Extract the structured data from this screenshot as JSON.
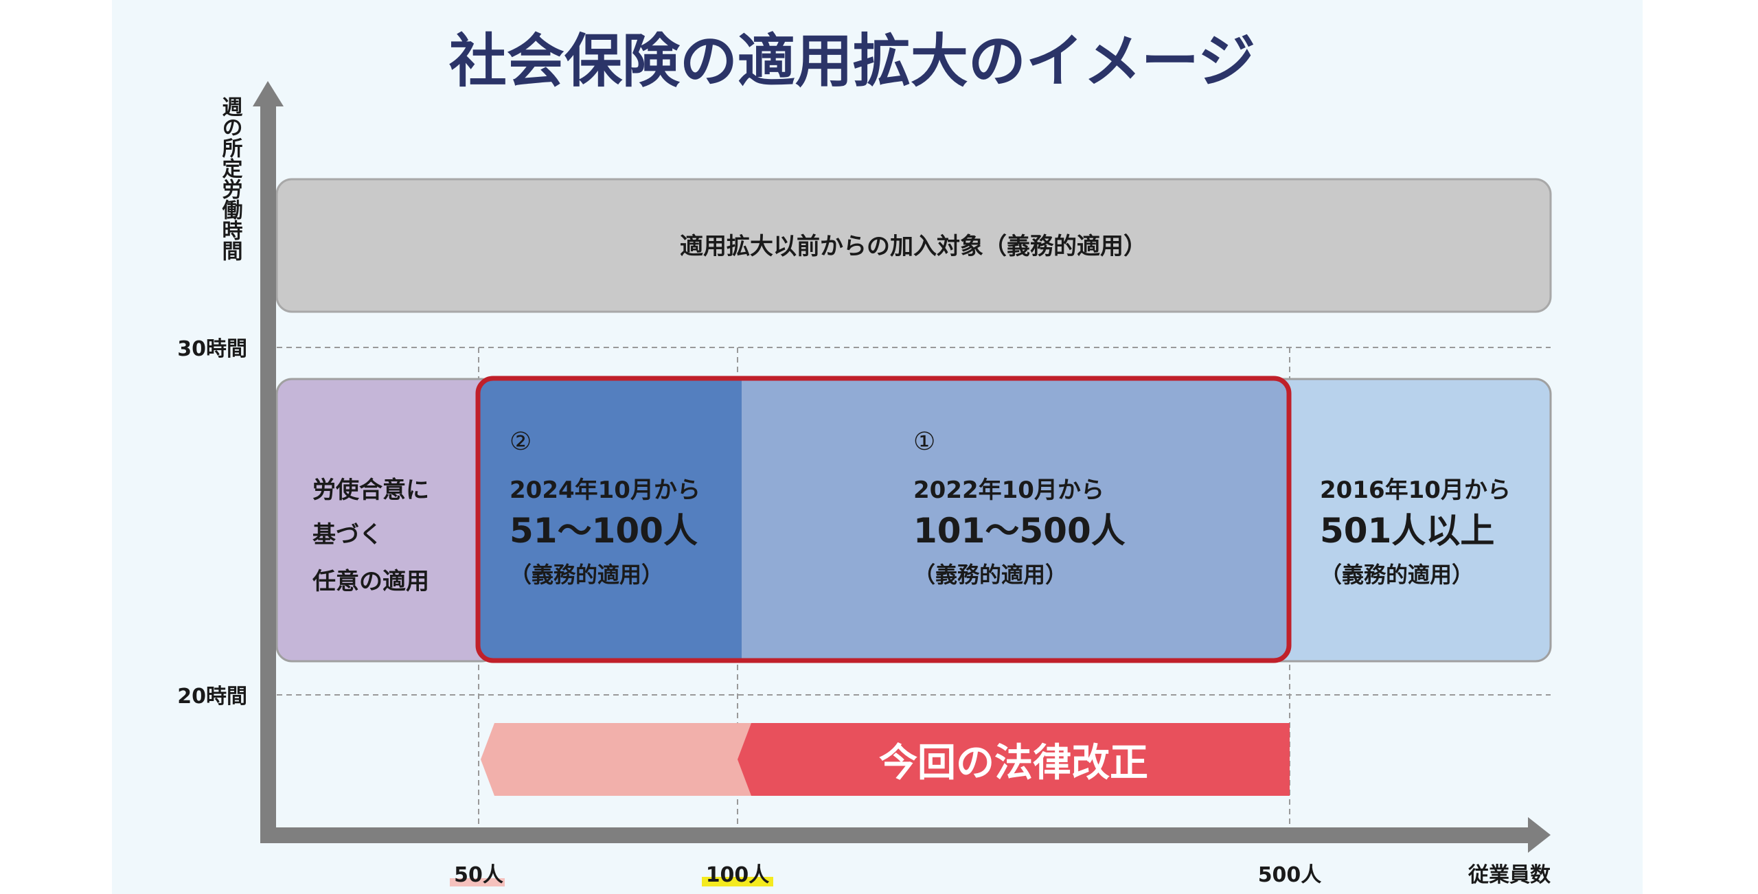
{
  "title": "社会保険の適用拡大のイメージ",
  "y_axis": {
    "label": "週の所定労働時間",
    "ticks": [
      "30時間",
      "20時間"
    ]
  },
  "x_axis": {
    "label": "従業員数",
    "ticks": [
      "50人",
      "100人",
      "500人"
    ]
  },
  "top_box": {
    "text": "適用拡大以前からの加入対象（義務的適用）"
  },
  "boxes": [
    {
      "lines": [
        "労使合意に",
        "基づく",
        "任意の適用"
      ]
    },
    {
      "marker": "②",
      "date": "2024年10月から",
      "range": "51〜100人",
      "note": "（義務的適用）"
    },
    {
      "marker": "①",
      "date": "2022年10月から",
      "range": "101〜500人",
      "note": "（義務的適用）"
    },
    {
      "date": "2016年10月から",
      "range": "501人以上",
      "note": "（義務的適用）"
    }
  ],
  "reform_arrow": {
    "label": "今回の法律改正"
  },
  "colors": {
    "background": "#f0f8fc",
    "title": "#2b3468",
    "axis": "#7f7f7f",
    "top_box": "#c9c9c9",
    "purple_box": "#c5b6d8",
    "dark_blue_box": "#547fbf",
    "mid_blue_box": "#91abd5",
    "light_blue_box": "#b8d2ec",
    "highlight_outline": "#c0202a",
    "reform_red": "#e8505c",
    "reform_pink": "#f2b0ab"
  }
}
